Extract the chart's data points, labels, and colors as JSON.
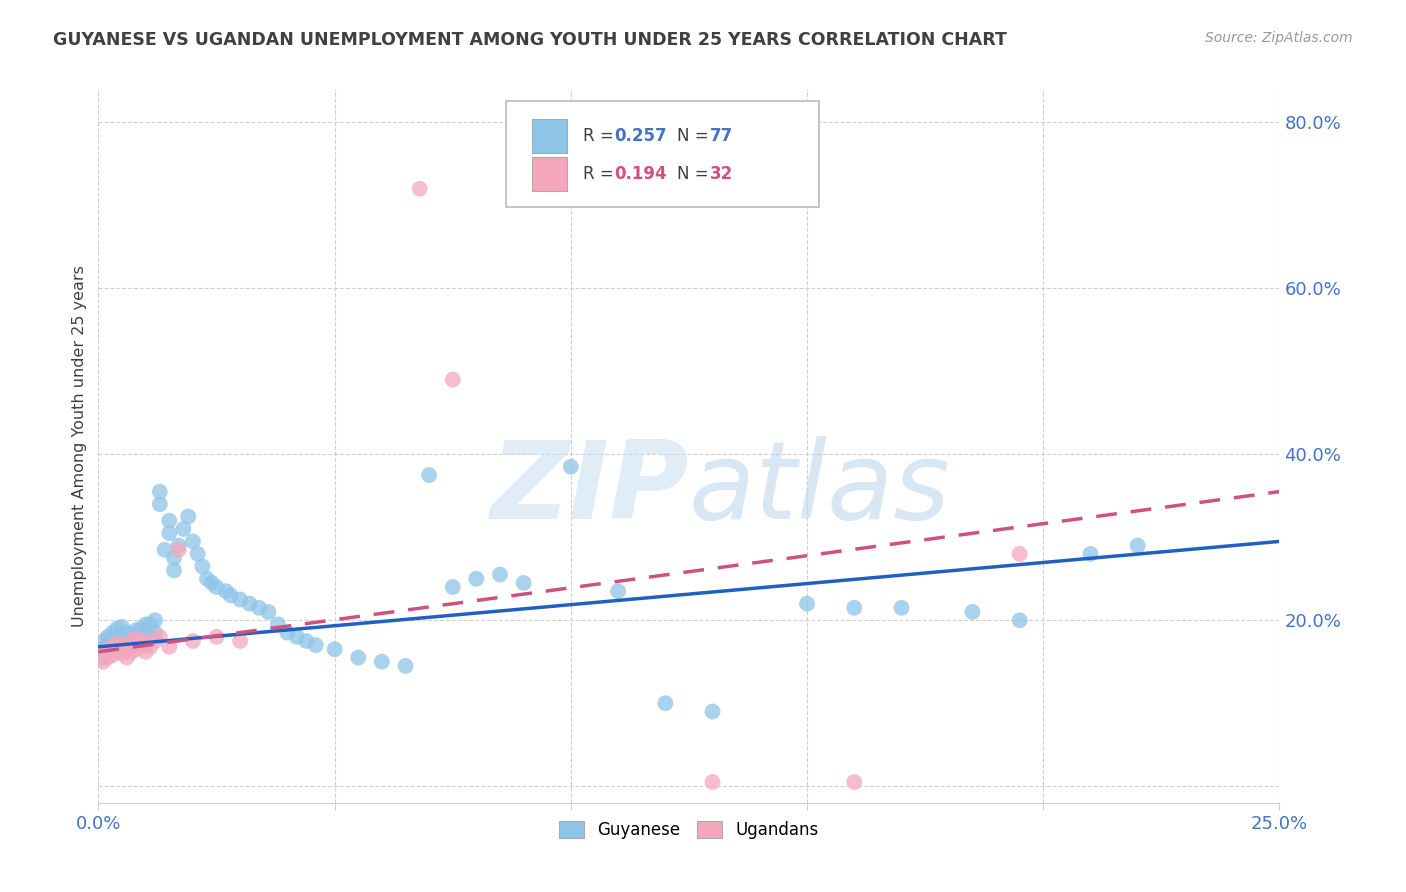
{
  "title": "GUYANESE VS UGANDAN UNEMPLOYMENT AMONG YOUTH UNDER 25 YEARS CORRELATION CHART",
  "source": "Source: ZipAtlas.com",
  "ylabel": "Unemployment Among Youth under 25 years",
  "xlim": [
    0.0,
    0.25
  ],
  "ylim": [
    -0.02,
    0.84
  ],
  "xtick_vals": [
    0.0,
    0.05,
    0.1,
    0.15,
    0.2,
    0.25
  ],
  "ytick_vals": [
    0.0,
    0.2,
    0.4,
    0.6,
    0.8
  ],
  "guyanese_color": "#8ec4e8",
  "ugandan_color": "#f4a7bc",
  "trend_blue": "#2060c0",
  "trend_pink": "#d05080",
  "axis_color": "#4472c4",
  "title_color": "#404040",
  "grid_color": "#d0d0d0",
  "background_color": "#ffffff",
  "guyanese_x": [
    0.001,
    0.001,
    0.001,
    0.002,
    0.002,
    0.002,
    0.003,
    0.003,
    0.003,
    0.004,
    0.004,
    0.004,
    0.005,
    0.005,
    0.005,
    0.006,
    0.006,
    0.007,
    0.007,
    0.008,
    0.008,
    0.009,
    0.009,
    0.01,
    0.01,
    0.01,
    0.011,
    0.011,
    0.012,
    0.012,
    0.013,
    0.013,
    0.014,
    0.015,
    0.015,
    0.016,
    0.016,
    0.017,
    0.018,
    0.019,
    0.02,
    0.021,
    0.022,
    0.023,
    0.024,
    0.025,
    0.027,
    0.028,
    0.03,
    0.032,
    0.034,
    0.036,
    0.038,
    0.04,
    0.042,
    0.044,
    0.046,
    0.05,
    0.055,
    0.06,
    0.065,
    0.07,
    0.075,
    0.08,
    0.085,
    0.09,
    0.1,
    0.11,
    0.12,
    0.13,
    0.15,
    0.16,
    0.17,
    0.185,
    0.195,
    0.21,
    0.22
  ],
  "guyanese_y": [
    0.155,
    0.165,
    0.175,
    0.16,
    0.17,
    0.18,
    0.165,
    0.175,
    0.185,
    0.17,
    0.175,
    0.19,
    0.165,
    0.178,
    0.192,
    0.17,
    0.185,
    0.168,
    0.182,
    0.172,
    0.188,
    0.175,
    0.19,
    0.17,
    0.182,
    0.195,
    0.18,
    0.195,
    0.185,
    0.2,
    0.34,
    0.355,
    0.285,
    0.305,
    0.32,
    0.26,
    0.275,
    0.29,
    0.31,
    0.325,
    0.295,
    0.28,
    0.265,
    0.25,
    0.245,
    0.24,
    0.235,
    0.23,
    0.225,
    0.22,
    0.215,
    0.21,
    0.195,
    0.185,
    0.18,
    0.175,
    0.17,
    0.165,
    0.155,
    0.15,
    0.145,
    0.375,
    0.24,
    0.25,
    0.255,
    0.245,
    0.385,
    0.235,
    0.1,
    0.09,
    0.22,
    0.215,
    0.215,
    0.21,
    0.2,
    0.28,
    0.29
  ],
  "ugandan_x": [
    0.001,
    0.001,
    0.002,
    0.002,
    0.003,
    0.003,
    0.004,
    0.004,
    0.005,
    0.005,
    0.006,
    0.006,
    0.007,
    0.007,
    0.008,
    0.008,
    0.009,
    0.01,
    0.01,
    0.011,
    0.012,
    0.013,
    0.015,
    0.017,
    0.02,
    0.025,
    0.03,
    0.068,
    0.075,
    0.13,
    0.16,
    0.195
  ],
  "ugandan_y": [
    0.16,
    0.15,
    0.155,
    0.165,
    0.158,
    0.168,
    0.162,
    0.172,
    0.16,
    0.17,
    0.155,
    0.168,
    0.162,
    0.175,
    0.165,
    0.178,
    0.172,
    0.162,
    0.175,
    0.168,
    0.175,
    0.18,
    0.168,
    0.285,
    0.175,
    0.18,
    0.175,
    0.72,
    0.49,
    0.005,
    0.005,
    0.28
  ],
  "trend_blue_x0": 0.0,
  "trend_blue_y0": 0.168,
  "trend_blue_x1": 0.25,
  "trend_blue_y1": 0.295,
  "trend_pink_x0": 0.0,
  "trend_pink_y0": 0.162,
  "trend_pink_x1": 0.25,
  "trend_pink_y1": 0.355
}
